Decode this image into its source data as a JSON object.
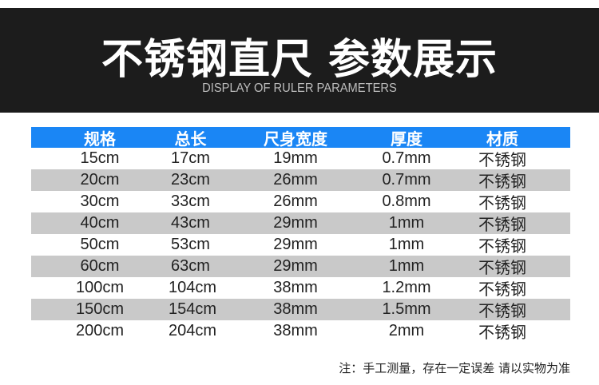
{
  "header": {
    "title": "不锈钢直尺 参数展示",
    "subtitle": "DISPLAY OF RULER PARAMETERS"
  },
  "table": {
    "columns": [
      "规格",
      "总长",
      "尺身宽度",
      "厚度",
      "材质"
    ],
    "rows": [
      [
        "15cm",
        "17cm",
        "19mm",
        "0.7mm",
        "不锈钢"
      ],
      [
        "20cm",
        "23cm",
        "26mm",
        "0.7mm",
        "不锈钢"
      ],
      [
        "30cm",
        "33cm",
        "26mm",
        "0.8mm",
        "不锈钢"
      ],
      [
        "40cm",
        "43cm",
        "29mm",
        "1mm",
        "不锈钢"
      ],
      [
        "50cm",
        "53cm",
        "29mm",
        "1mm",
        "不锈钢"
      ],
      [
        "60cm",
        "63cm",
        "29mm",
        "1mm",
        "不锈钢"
      ],
      [
        "100cm",
        "104cm",
        "38mm",
        "1.2mm",
        "不锈钢"
      ],
      [
        "150cm",
        "154cm",
        "38mm",
        "1.5mm",
        "不锈钢"
      ],
      [
        "200cm",
        "204cm",
        "38mm",
        "2mm",
        "不锈钢"
      ]
    ]
  },
  "note": "注：手工测量，存在一定误差 请以实物为准",
  "colors": {
    "header_bg": "#1a86f5",
    "banner_bg": "#1c1c1c",
    "stripe": "#c9c9c9"
  }
}
